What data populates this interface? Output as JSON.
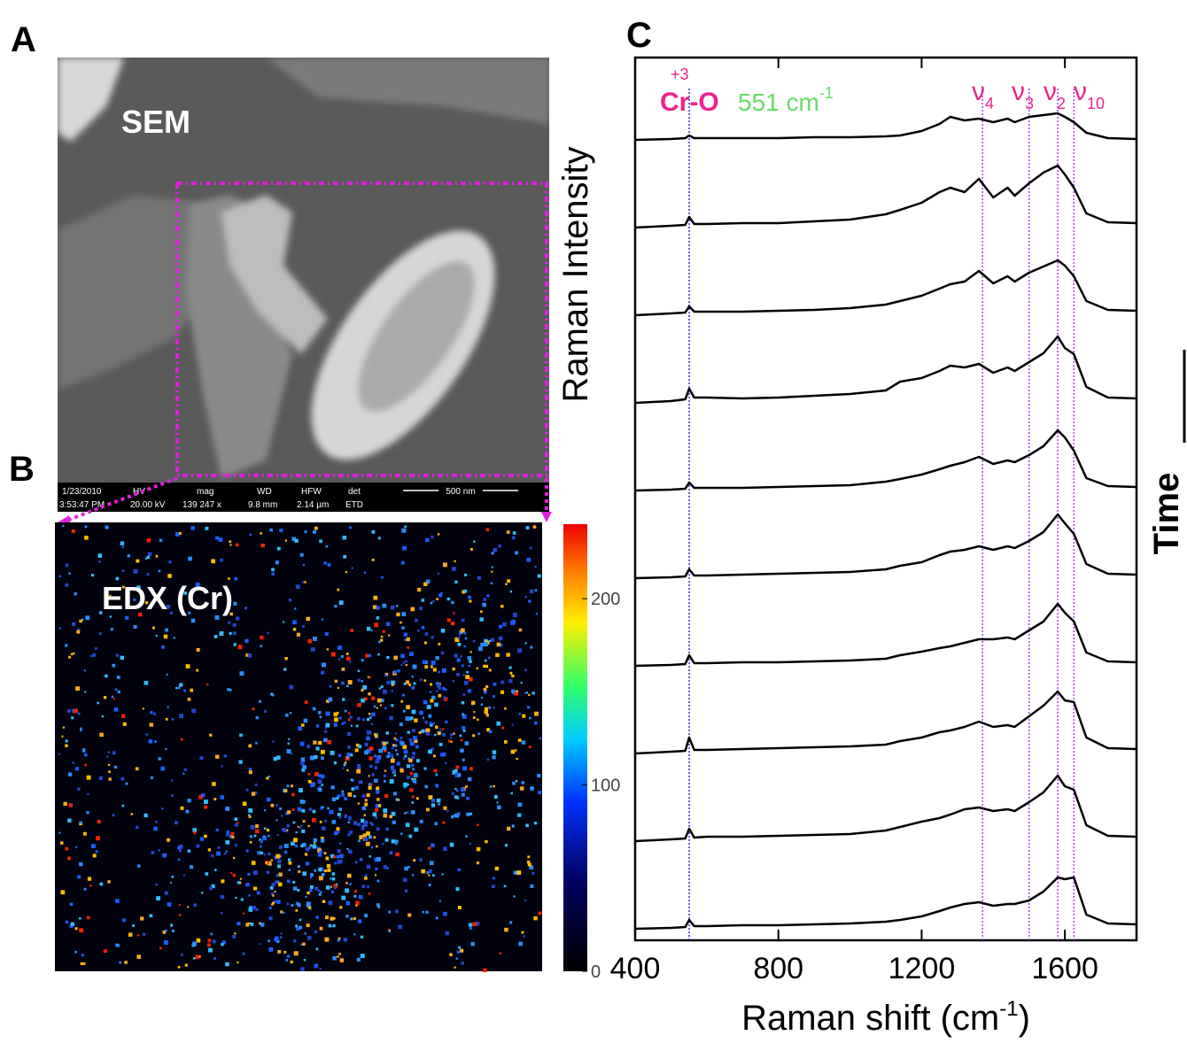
{
  "panels": {
    "a": {
      "letter": "A",
      "label": "SEM",
      "info_bar": {
        "date": "1/23/2010",
        "time": "3:53:47 PM",
        "hv_label": "HV",
        "hv": "20.00 kV",
        "mag_label": "mag",
        "mag": "139 247 x",
        "wd_label": "WD",
        "wd": "9.8 mm",
        "hfw_label": "HFW",
        "hfw": "2.14 µm",
        "det_label": "det",
        "det": "ETD",
        "scale": "500 nm"
      }
    },
    "b": {
      "letter": "B",
      "label": "EDX (Cr)",
      "colorbar": {
        "ylim": [
          0,
          240
        ],
        "yticks": [
          0,
          100,
          200
        ]
      }
    }
  },
  "chart_data": {
    "type": "line",
    "letter": "C",
    "ylabel": "Raman Intensity",
    "xlabel": "Raman shift (cm",
    "xlabel_sup": "-1",
    "xlabel_end": ")",
    "side_label": "Time",
    "xlim": [
      400,
      1800
    ],
    "xticks": [
      400,
      800,
      1200,
      1600
    ],
    "ylim": [
      0,
      1
    ],
    "x": [
      400,
      500,
      540,
      551,
      565,
      600,
      700,
      800,
      900,
      1000,
      1100,
      1140,
      1200,
      1250,
      1280,
      1320,
      1360,
      1400,
      1440,
      1460,
      1500,
      1540,
      1580,
      1600,
      1625,
      1660,
      1720,
      1800
    ],
    "series": [
      {
        "color": "#000000",
        "values": [
          0,
          0.01,
          0.02,
          0.05,
          0.02,
          0.02,
          0.02,
          0.02,
          0.03,
          0.03,
          0.04,
          0.05,
          0.1,
          0.18,
          0.26,
          0.22,
          0.24,
          0.2,
          0.24,
          0.2,
          0.26,
          0.28,
          0.3,
          0.26,
          0.2,
          0.08,
          0.02,
          0.01
        ]
      },
      {
        "color": "#000000",
        "values": [
          0,
          0.02,
          0.03,
          0.12,
          0.04,
          0.04,
          0.05,
          0.05,
          0.07,
          0.09,
          0.15,
          0.2,
          0.28,
          0.4,
          0.45,
          0.4,
          0.55,
          0.34,
          0.45,
          0.36,
          0.5,
          0.62,
          0.7,
          0.6,
          0.45,
          0.16,
          0.06,
          0.05
        ]
      },
      {
        "color": "#000000",
        "values": [
          0,
          0.02,
          0.03,
          0.1,
          0.04,
          0.04,
          0.04,
          0.05,
          0.06,
          0.08,
          0.12,
          0.16,
          0.22,
          0.3,
          0.35,
          0.38,
          0.5,
          0.36,
          0.44,
          0.38,
          0.48,
          0.55,
          0.62,
          0.56,
          0.44,
          0.16,
          0.06,
          0.05
        ]
      },
      {
        "color": "#000000",
        "values": [
          0,
          0.02,
          0.04,
          0.16,
          0.06,
          0.06,
          0.05,
          0.06,
          0.08,
          0.1,
          0.14,
          0.24,
          0.28,
          0.36,
          0.42,
          0.4,
          0.44,
          0.34,
          0.4,
          0.36,
          0.46,
          0.56,
          0.75,
          0.62,
          0.55,
          0.18,
          0.06,
          0.05
        ]
      },
      {
        "color": "#000000",
        "values": [
          0,
          0.01,
          0.02,
          0.09,
          0.03,
          0.03,
          0.03,
          0.04,
          0.05,
          0.06,
          0.1,
          0.13,
          0.18,
          0.24,
          0.28,
          0.32,
          0.38,
          0.3,
          0.34,
          0.32,
          0.4,
          0.5,
          0.68,
          0.6,
          0.45,
          0.14,
          0.05,
          0.04
        ]
      },
      {
        "color": "#000000",
        "values": [
          0,
          0.01,
          0.02,
          0.1,
          0.03,
          0.03,
          0.04,
          0.05,
          0.06,
          0.07,
          0.1,
          0.14,
          0.18,
          0.26,
          0.3,
          0.32,
          0.36,
          0.32,
          0.36,
          0.34,
          0.42,
          0.52,
          0.72,
          0.62,
          0.5,
          0.16,
          0.05,
          0.04
        ]
      },
      {
        "color": "#000000",
        "values": [
          0,
          0.01,
          0.02,
          0.12,
          0.03,
          0.03,
          0.04,
          0.04,
          0.05,
          0.06,
          0.08,
          0.12,
          0.16,
          0.2,
          0.22,
          0.26,
          0.3,
          0.3,
          0.32,
          0.3,
          0.4,
          0.5,
          0.7,
          0.6,
          0.5,
          0.15,
          0.05,
          0.04
        ]
      },
      {
        "color": "#000000",
        "values": [
          0,
          0.02,
          0.03,
          0.18,
          0.04,
          0.04,
          0.05,
          0.06,
          0.07,
          0.08,
          0.1,
          0.14,
          0.18,
          0.24,
          0.26,
          0.3,
          0.36,
          0.3,
          0.32,
          0.3,
          0.42,
          0.54,
          0.7,
          0.6,
          0.58,
          0.18,
          0.06,
          0.05
        ]
      },
      {
        "color": "#000000",
        "values": [
          0,
          0.02,
          0.03,
          0.14,
          0.04,
          0.05,
          0.05,
          0.06,
          0.07,
          0.08,
          0.12,
          0.16,
          0.22,
          0.26,
          0.3,
          0.36,
          0.38,
          0.34,
          0.36,
          0.34,
          0.44,
          0.55,
          0.74,
          0.62,
          0.58,
          0.18,
          0.06,
          0.05
        ]
      },
      {
        "color": "#000000",
        "values": [
          0,
          0.01,
          0.02,
          0.1,
          0.03,
          0.03,
          0.04,
          0.04,
          0.05,
          0.06,
          0.08,
          0.1,
          0.14,
          0.2,
          0.24,
          0.28,
          0.3,
          0.26,
          0.28,
          0.28,
          0.32,
          0.42,
          0.58,
          0.56,
          0.58,
          0.16,
          0.06,
          0.05
        ]
      }
    ],
    "markers": [
      {
        "x": 551,
        "color": "#3333cc"
      },
      {
        "x": 1370,
        "color": "#b040e0"
      },
      {
        "x": 1500,
        "color": "#b040e0"
      },
      {
        "x": 1580,
        "color": "#b040e0"
      },
      {
        "x": 1625,
        "color": "#b040e0"
      }
    ],
    "annotations": {
      "cro": {
        "text": "Cr-O",
        "sup": "+3",
        "color": "#ee2288"
      },
      "band": {
        "text": "551 cm",
        "sup": "-1",
        "color": "#66dd66"
      },
      "modes": [
        {
          "symbol": "ν",
          "sub": "4"
        },
        {
          "symbol": "ν",
          "sub": "3"
        },
        {
          "symbol": "ν",
          "sub": "2"
        },
        {
          "symbol": "ν",
          "sub": "10"
        }
      ],
      "mode_color": "#ee2288"
    }
  }
}
